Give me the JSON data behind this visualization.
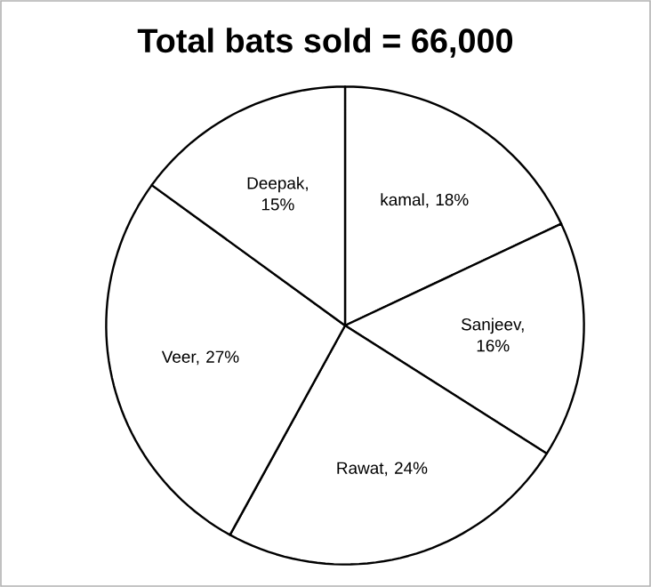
{
  "chart_data": {
    "type": "pie",
    "title": "Total bats sold = 66,000",
    "categories": [
      "kamal, 18%",
      "Sanjeev, 16%",
      "Rawat, 24%",
      "Veer, 27%",
      "Deepak, 15%"
    ],
    "values": [
      18,
      16,
      24,
      27,
      15
    ],
    "colors": [
      "#ffffff",
      "#ffffff",
      "#ffffff",
      "#ffffff",
      "#ffffff"
    ]
  }
}
